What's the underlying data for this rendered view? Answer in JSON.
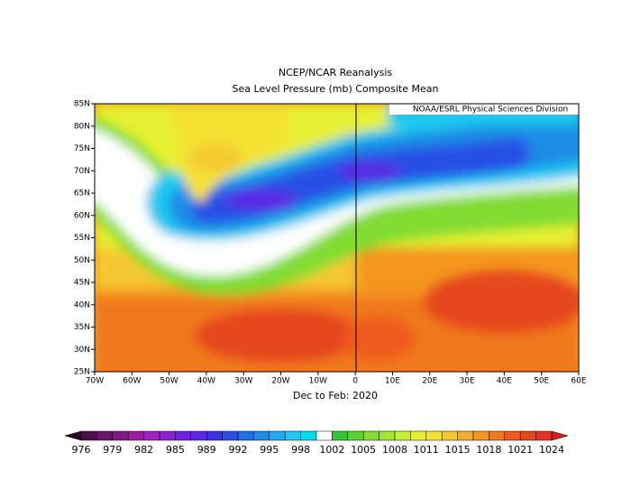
{
  "map": {
    "title": "NCEP/NCAR Reanalysis",
    "subtitle": "Sea Level Pressure (mb) Composite Mean",
    "credit": "NOAA/ESRL Physical Sciences Division",
    "period": "Dec to Feb: 2020",
    "lon_ticks": [
      "70W",
      "60W",
      "50W",
      "40W",
      "30W",
      "20W",
      "10W",
      "0",
      "10E",
      "20E",
      "30E",
      "40E",
      "50E",
      "60E"
    ],
    "lat_ticks": [
      "25N",
      "30N",
      "35N",
      "40N",
      "45N",
      "50N",
      "55N",
      "60N",
      "65N",
      "70N",
      "75N",
      "80N",
      "85N"
    ],
    "colorbar": {
      "labels": [
        976,
        979,
        982,
        985,
        989,
        992,
        995,
        998,
        1002,
        1005,
        1008,
        1011,
        1015,
        1018,
        1021,
        1024
      ],
      "colors": [
        "#2a0a2a",
        "#4b0f4b",
        "#6a1470",
        "#82198a",
        "#9a1fa5",
        "#a020c0",
        "#8a20d0",
        "#7020e0",
        "#5a28e6",
        "#3c32e6",
        "#2850e6",
        "#1e6ee6",
        "#1e8ce6",
        "#1eaaf0",
        "#1ec8f0",
        "#00dcf0",
        "#ffffff",
        "#32c832",
        "#5ad232",
        "#82dc32",
        "#a0e632",
        "#c8f032",
        "#e6f032",
        "#f5e132",
        "#f5c832",
        "#f5aa32",
        "#f5961e",
        "#f0781e",
        "#f05a1e",
        "#e6461e",
        "#e6321e",
        "#d21e1e"
      ]
    }
  }
}
